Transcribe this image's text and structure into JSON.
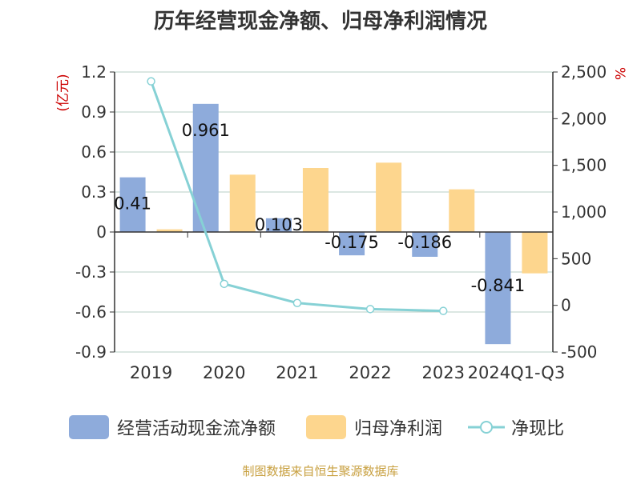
{
  "chart_data": {
    "type": "bar",
    "title": "历年经营现金净额、归母净利润情况",
    "categories": [
      "2019",
      "2020",
      "2021",
      "2022",
      "2023",
      "2024Q1-Q3"
    ],
    "ylabel": "(亿元)",
    "y2label": "%",
    "ylim": [
      -0.9,
      1.2
    ],
    "y2lim": [
      -500,
      2500
    ],
    "yticks": [
      "1.2",
      "0.9",
      "0.6",
      "0.3",
      "0",
      "-0.3",
      "-0.6",
      "-0.9"
    ],
    "y2ticks": [
      "2,500",
      "2,000",
      "1,500",
      "1,000",
      "500",
      "0",
      "-500"
    ],
    "series": [
      {
        "name": "经营活动现金流净额",
        "kind": "bar",
        "color": "#8eabdb",
        "values": [
          0.41,
          0.961,
          0.103,
          -0.175,
          -0.186,
          -0.841
        ],
        "labels": [
          "0.41",
          "0.961",
          "0.103",
          "-0.175",
          "-0.186",
          "-0.841"
        ]
      },
      {
        "name": "归母净利润",
        "kind": "bar",
        "color": "#fdd68e",
        "values": [
          0.02,
          0.43,
          0.48,
          0.52,
          0.32,
          -0.31
        ]
      },
      {
        "name": "净现比",
        "kind": "line",
        "axis": "right",
        "color": "#86d1d5",
        "values": [
          2400,
          230,
          25,
          -40,
          -60,
          null
        ]
      }
    ],
    "grid": true,
    "legend_position": "bottom"
  },
  "source": "制图数据来自恒生聚源数据库"
}
